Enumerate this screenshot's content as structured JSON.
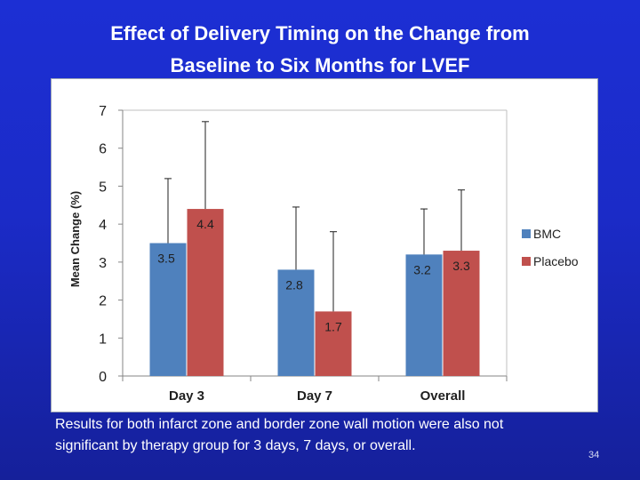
{
  "slide": {
    "title_line1": "Effect of Delivery Timing on the Change from",
    "title_line2": "Baseline to Six Months for LVEF",
    "caption_line1": "Results for both infarct zone and border zone wall motion were also not",
    "caption_line2": "significant by therapy group for 3 days, 7 days, or overall.",
    "page_number": "34"
  },
  "chart_data": {
    "type": "bar",
    "title": "",
    "xlabel": "",
    "ylabel": "Mean Change (%)",
    "ylim": [
      0,
      7
    ],
    "yticks": [
      "0",
      "1",
      "2",
      "3",
      "4",
      "5",
      "6",
      "7"
    ],
    "categories": [
      "Day 3",
      "Day 7",
      "Overall"
    ],
    "series": [
      {
        "name": "BMC",
        "color": "#4f81bd",
        "values": [
          3.5,
          2.8,
          3.2
        ],
        "labels": [
          "3.5",
          "2.8",
          "3.2"
        ],
        "error_upper": [
          5.2,
          4.45,
          4.4
        ]
      },
      {
        "name": "Placebo",
        "color": "#c0504d",
        "values": [
          4.4,
          1.7,
          3.3
        ],
        "labels": [
          "4.4",
          "1.7",
          "3.3"
        ],
        "error_upper": [
          6.7,
          3.8,
          4.9
        ]
      }
    ],
    "legend": "right",
    "grid": false
  }
}
